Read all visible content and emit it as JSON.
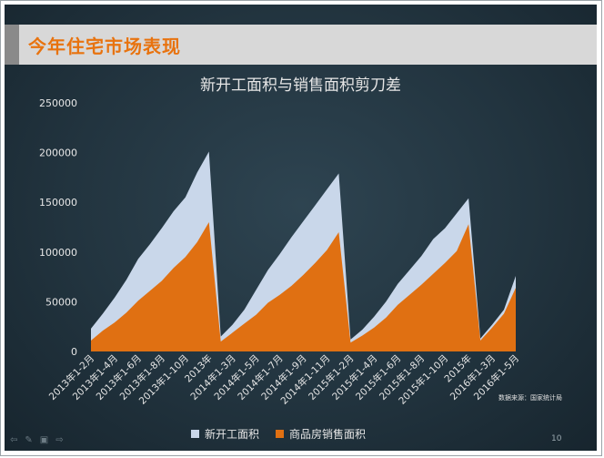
{
  "slide": {
    "title": "今年住宅市场表现",
    "page_number": "10",
    "source_note": "数据来源：国家统计局"
  },
  "nav_icons": [
    "prev-arrow-icon",
    "pen-icon",
    "menu-icon",
    "next-arrow-icon"
  ],
  "colors": {
    "series_construction": "#c9d7ea",
    "series_sales": "#e07012",
    "title": "#e8730f"
  },
  "chart_data": {
    "type": "area",
    "title": "新开工面积与销售面积剪刀差",
    "y_ticks": [
      "250000",
      "200000",
      "150000",
      "100000",
      "50000",
      "0"
    ],
    "ylim": [
      0,
      250000
    ],
    "x_tick_labels": [
      "2013年1-2月",
      "2013年1-4月",
      "2013年1-6月",
      "2013年1-8月",
      "2013年1-10月",
      "2013年",
      "2014年1-3月",
      "2014年1-5月",
      "2014年1-7月",
      "2014年1-9月",
      "2014年1-11月",
      "2015年1-2月",
      "2015年1-4月",
      "2015年1-6月",
      "2015年1-8月",
      "2015年1-10月",
      "2015年",
      "2016年1-3月",
      "2016年1-5月"
    ],
    "x": [
      "2013年1-2月",
      "2013年1-3月",
      "2013年1-4月",
      "2013年1-5月",
      "2013年1-6月",
      "2013年1-7月",
      "2013年1-8月",
      "2013年1-9月",
      "2013年1-10月",
      "2013年1-11月",
      "2013年",
      "2014年1-2月",
      "2014年1-3月",
      "2014年1-4月",
      "2014年1-5月",
      "2014年1-6月",
      "2014年1-7月",
      "2014年1-8月",
      "2014年1-9月",
      "2014年1-10月",
      "2014年1-11月",
      "2014年",
      "2015年1-2月",
      "2015年1-3月",
      "2015年1-4月",
      "2015年1-5月",
      "2015年1-6月",
      "2015年1-7月",
      "2015年1-8月",
      "2015年1-9月",
      "2015年1-10月",
      "2015年1-11月",
      "2015年",
      "2016年1-2月",
      "2016年1-3月",
      "2016年1-4月",
      "2016年1-5月"
    ],
    "series": [
      {
        "name": "新开工面积",
        "values": [
          23000,
          38000,
          54000,
          72000,
          93000,
          108000,
          124000,
          141000,
          155000,
          180000,
          201000,
          15000,
          27000,
          42000,
          62000,
          82000,
          98000,
          115000,
          131000,
          147000,
          163000,
          179000,
          12000,
          22000,
          35000,
          50000,
          68000,
          82000,
          96000,
          113000,
          124000,
          139000,
          154000,
          13000,
          27000,
          42000,
          76000
        ]
      },
      {
        "name": "商品房销售面积",
        "values": [
          11000,
          21000,
          29000,
          39000,
          51000,
          61000,
          71000,
          84000,
          95000,
          110000,
          130000,
          10000,
          19000,
          28000,
          37000,
          49000,
          57000,
          66000,
          77000,
          89000,
          102000,
          120000,
          9000,
          16000,
          24000,
          34000,
          47000,
          57000,
          67000,
          78000,
          89000,
          101000,
          128000,
          11000,
          24000,
          38000,
          64000
        ]
      }
    ],
    "legend_position": "bottom",
    "grid": false
  }
}
